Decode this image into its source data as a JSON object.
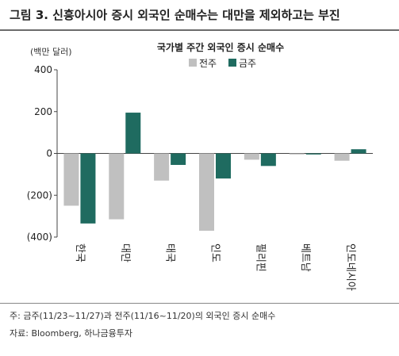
{
  "figure": {
    "title": "그림 3. 신흥아시아 증시 외국인 순매수는 대만을 제외하고는 부진",
    "note": "주: 금주(11/23~11/27)과 전주(11/16~11/20)의 외국인 증시 순매수",
    "source": "자료: Bloomberg, 하나금융투자"
  },
  "chart_data": {
    "type": "bar",
    "title": "국가별 주간 외국인 증시 순매수",
    "ylabel": "(백만 달러)",
    "ylim": [
      -400,
      400
    ],
    "yticks": [
      400,
      200,
      0,
      -200,
      -400
    ],
    "ytick_labels": [
      "400",
      "200",
      "0",
      "(200)",
      "(400)"
    ],
    "categories": [
      "한국",
      "대만",
      "태국",
      "인도",
      "필리핀",
      "베트남",
      "인도네시아"
    ],
    "series": [
      {
        "name": "전주",
        "color": "#c0c0c0",
        "values": [
          -250,
          -315,
          -130,
          -370,
          -30,
          -5,
          -35
        ]
      },
      {
        "name": "금주",
        "color": "#1f6b60",
        "values": [
          -335,
          195,
          -55,
          -120,
          -60,
          -5,
          20
        ]
      }
    ],
    "legend_position": "top-center",
    "grid": false
  }
}
